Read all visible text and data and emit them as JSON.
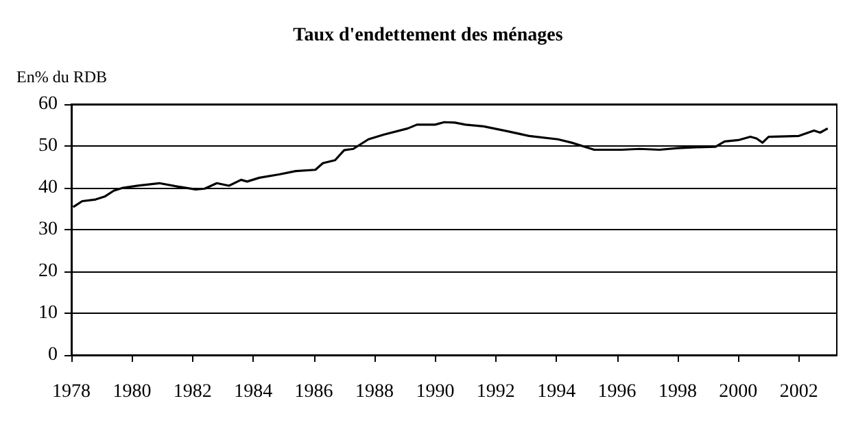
{
  "chart_data": {
    "type": "line",
    "title": "Taux d'endettement des ménages",
    "ylabel": "En% du RDB",
    "x": [
      1978.06,
      1978.36,
      1978.8,
      1979.1,
      1979.4,
      1979.7,
      1980.2,
      1980.9,
      1981.5,
      1982.1,
      1982.4,
      1982.8,
      1983.2,
      1983.6,
      1983.8,
      1984.2,
      1984.85,
      1985.4,
      1986.05,
      1986.3,
      1986.7,
      1987.0,
      1987.3,
      1987.8,
      1988.3,
      1989.1,
      1989.4,
      1990.0,
      1990.3,
      1990.65,
      1991.0,
      1991.6,
      1992.4,
      1993.1,
      1994.05,
      1994.5,
      1995.25,
      1996.15,
      1996.75,
      1997.4,
      1998.0,
      1998.6,
      1999.25,
      1999.55,
      2000.0,
      2000.4,
      2000.6,
      2000.8,
      2001.0,
      2002.0,
      2002.5,
      2002.7,
      2002.95
    ],
    "series": [
      {
        "color": "#000000",
        "values": [
          35.4,
          36.8,
          37.2,
          37.9,
          39.3,
          40.0,
          40.5,
          41.1,
          40.3,
          39.6,
          39.8,
          41.1,
          40.5,
          41.9,
          41.5,
          42.4,
          43.2,
          44.0,
          44.3,
          45.9,
          46.6,
          49.0,
          49.3,
          51.6,
          52.7,
          54.2,
          55.1,
          55.1,
          55.7,
          55.6,
          55.1,
          54.7,
          53.5,
          52.4,
          51.6,
          50.8,
          49.1,
          49.1,
          49.3,
          49.1,
          49.5,
          49.7,
          49.8,
          51.1,
          51.4,
          52.2,
          51.8,
          50.8,
          52.2,
          52.4,
          53.7,
          53.2,
          54.2
        ]
      }
    ],
    "xlim": [
      1978,
      2003.25
    ],
    "xticks": [
      1978,
      1980,
      1982,
      1984,
      1986,
      1988,
      1990,
      1992,
      1994,
      1996,
      1998,
      2000,
      2002
    ],
    "ylim": [
      0,
      60
    ],
    "yticks": [
      0,
      10,
      20,
      30,
      40,
      50,
      60
    ],
    "grid": "y",
    "marker": "none",
    "line_style": "solid"
  }
}
